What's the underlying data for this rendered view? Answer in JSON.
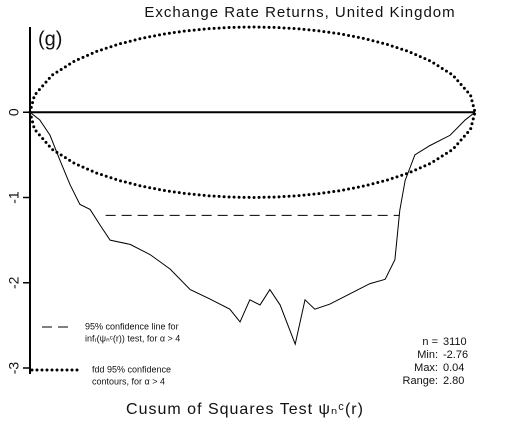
{
  "chart_data": {
    "type": "line",
    "title": "Exchange Rate Returns, United Kingdom",
    "panel_label": "(g)",
    "xlabel": "Cusum of Squares Test ψₙᶜ(r)",
    "xlim": [
      0,
      1
    ],
    "ylim": [
      -3,
      1
    ],
    "yticks": [
      -3,
      -2,
      -1,
      0
    ],
    "series": [
      {
        "color": "#000",
        "style": "solid",
        "x": [
          0,
          0.022,
          0.045,
          0.067,
          0.09,
          0.112,
          0.135,
          0.157,
          0.18,
          0.225,
          0.27,
          0.315,
          0.36,
          0.404,
          0.449,
          0.472,
          0.494,
          0.517,
          0.539,
          0.562,
          0.596,
          0.618,
          0.64,
          0.674,
          0.719,
          0.764,
          0.798,
          0.82,
          0.831,
          0.843,
          0.865,
          0.899,
          0.944,
          0.978,
          1
        ],
        "values": [
          0,
          -0.09,
          -0.27,
          -0.56,
          -0.85,
          -1.08,
          -1.14,
          -1.32,
          -1.5,
          -1.55,
          -1.67,
          -1.84,
          -2.08,
          -2.19,
          -2.31,
          -2.46,
          -2.2,
          -2.26,
          -2.08,
          -2.26,
          -2.72,
          -2.2,
          -2.31,
          -2.25,
          -2.13,
          -2.01,
          -1.96,
          -1.73,
          -1.15,
          -0.8,
          -0.5,
          -0.39,
          -0.27,
          -0.09,
          0
        ]
      },
      {
        "color": "#000",
        "style": "dotted",
        "x": [
          0,
          0.01,
          0.05,
          0.1,
          0.15,
          0.2,
          0.25,
          0.3,
          0.35,
          0.4,
          0.45,
          0.5,
          0.55,
          0.6,
          0.65,
          0.7,
          0.75,
          0.8,
          0.85,
          0.9,
          0.95,
          0.99,
          1
        ],
        "values": [
          0,
          0.199,
          0.436,
          0.6,
          0.714,
          0.8,
          0.866,
          0.917,
          0.954,
          0.98,
          0.995,
          1,
          0.995,
          0.98,
          0.954,
          0.917,
          0.866,
          0.8,
          0.714,
          0.6,
          0.436,
          0.199,
          0
        ]
      },
      {
        "color": "#000",
        "style": "dotted",
        "x": [
          0,
          0.01,
          0.05,
          0.1,
          0.15,
          0.2,
          0.25,
          0.3,
          0.35,
          0.4,
          0.45,
          0.5,
          0.55,
          0.6,
          0.65,
          0.7,
          0.75,
          0.8,
          0.85,
          0.9,
          0.95,
          0.99,
          1
        ],
        "values": [
          0,
          -0.199,
          -0.436,
          -0.6,
          -0.714,
          -0.8,
          -0.866,
          -0.917,
          -0.954,
          -0.98,
          -0.995,
          -1,
          -0.995,
          -0.98,
          -0.954,
          -0.917,
          -0.866,
          -0.8,
          -0.714,
          -0.6,
          -0.436,
          -0.199,
          0
        ]
      },
      {
        "color": "#000",
        "style": "dashed",
        "x": [
          0.17,
          0.83
        ],
        "values": [
          -1.21,
          -1.21
        ]
      }
    ],
    "reference_line": 0,
    "legend": [
      {
        "style": "dashed",
        "lines": [
          "95% confidence line for",
          "infᵣ(ψₙᶜ(r)) test, for α > 4"
        ]
      },
      {
        "style": "dotted",
        "lines": [
          "fdd 95% confidence",
          "contours, for α > 4"
        ]
      }
    ],
    "stats": [
      {
        "label": "n =",
        "value": "3110"
      },
      {
        "label": "Min:",
        "value": "-2.76"
      },
      {
        "label": "Max:",
        "value": "0.04"
      },
      {
        "label": "Range:",
        "value": "2.80"
      }
    ]
  }
}
